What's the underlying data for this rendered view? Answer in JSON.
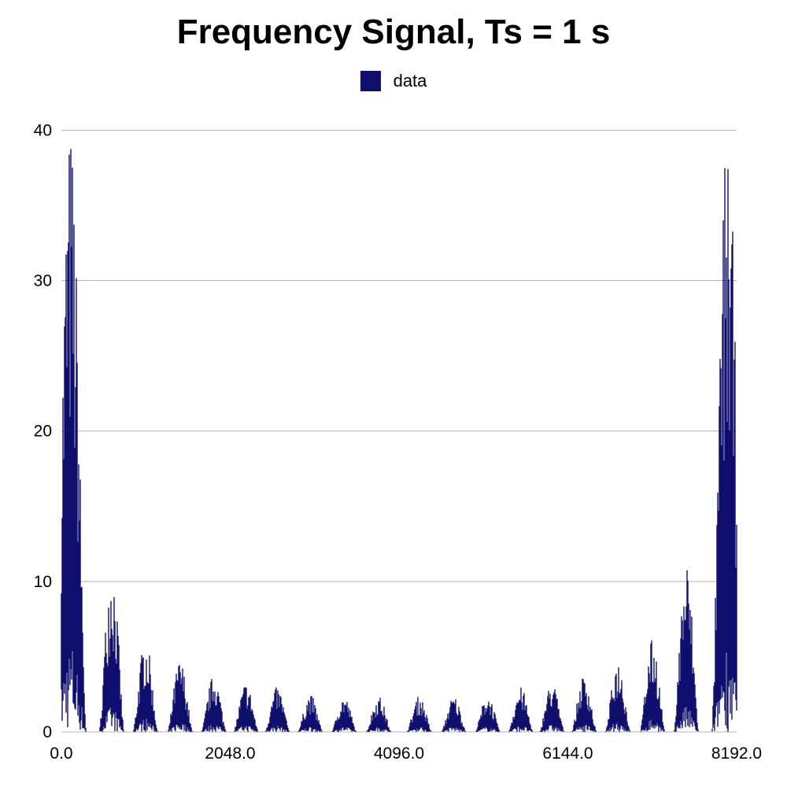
{
  "chart_data": {
    "type": "bar",
    "title": "Frequency Signal, Ts = 1 s",
    "xlabel": "",
    "ylabel": "",
    "series": [
      {
        "name": "data",
        "color": "#0f0f6e"
      }
    ],
    "legend_position": "top-center",
    "grid": {
      "horizontal": true,
      "vertical": false,
      "color": "#b3b3b3"
    },
    "xlim": [
      0,
      8192
    ],
    "ylim": [
      0,
      40.7
    ],
    "x_ticks": [
      0,
      2048,
      4096,
      6144,
      8192
    ],
    "x_tick_labels": [
      "0.0",
      "2048.0",
      "4096.0",
      "6144.0",
      "8192.0"
    ],
    "y_ticks": [
      0,
      10,
      20,
      30,
      40
    ],
    "y_tick_labels": [
      "0",
      "10",
      "20",
      "30",
      "40"
    ],
    "symmetric_about_x": 4096,
    "lobes": [
      {
        "center": 110,
        "peak": 40.5
      },
      {
        "center": 610,
        "peak": 11.5
      },
      {
        "center": 1020,
        "peak": 6.2
      },
      {
        "center": 1440,
        "peak": 4.8
      },
      {
        "center": 1850,
        "peak": 3.8
      },
      {
        "center": 2240,
        "peak": 3.3
      },
      {
        "center": 2620,
        "peak": 3.0
      },
      {
        "center": 3020,
        "peak": 2.5
      },
      {
        "center": 3430,
        "peak": 2.4
      },
      {
        "center": 3850,
        "peak": 2.4
      }
    ]
  }
}
